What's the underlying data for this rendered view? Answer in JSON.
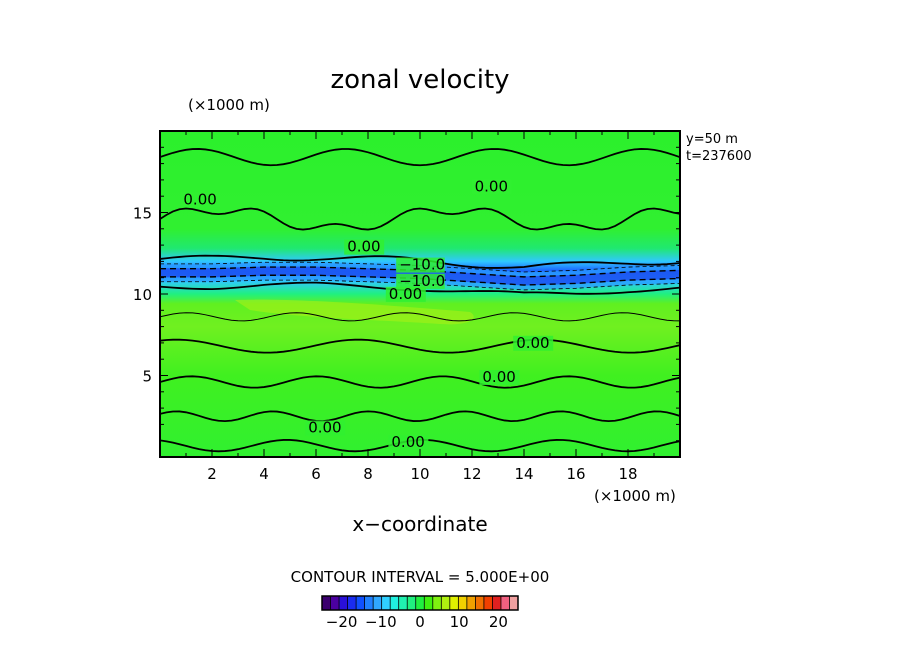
{
  "chart_data": {
    "type": "heatmap",
    "title": "zonal velocity",
    "xlabel": "x−coordinate",
    "ylabel": "",
    "x_unit": "(×1000 m)",
    "y_unit": "(×1000 m)",
    "xlim": [
      0,
      20
    ],
    "ylim": [
      0,
      20
    ],
    "x_ticks": [
      2,
      4,
      6,
      8,
      10,
      12,
      14,
      16,
      18
    ],
    "y_ticks": [
      5,
      10,
      15
    ],
    "info": [
      "y=50 m",
      "t=237600"
    ],
    "contour_interval_text": "CONTOUR INTERVAL = 5.000E+00",
    "colorbar": {
      "range": [
        -25,
        25
      ],
      "ticks": [
        -20,
        -10,
        0,
        10,
        20
      ],
      "colors": [
        "#3b006e",
        "#4b00a0",
        "#2a10d8",
        "#1a2cf0",
        "#1050ff",
        "#2080ff",
        "#30a8ff",
        "#30d0ff",
        "#20f0e0",
        "#20f0b0",
        "#20f080",
        "#20f040",
        "#40f010",
        "#80f010",
        "#b0f010",
        "#e0f000",
        "#f0d000",
        "#f0a000",
        "#f07000",
        "#f04000",
        "#e02020",
        "#f06080",
        "#f0a0a0"
      ]
    },
    "contour_labels": [
      {
        "text": "0.00",
        "x": 0.9,
        "y": 15.5
      },
      {
        "text": "0.00",
        "x": 12.1,
        "y": 16.3
      },
      {
        "text": "0.00",
        "x": 7.2,
        "y": 12.6
      },
      {
        "text": "−10.0",
        "x": 9.2,
        "y": 11.5
      },
      {
        "text": "−10.0",
        "x": 9.2,
        "y": 10.5
      },
      {
        "text": "0.00",
        "x": 8.8,
        "y": 9.7
      },
      {
        "text": "0.00",
        "x": 13.7,
        "y": 6.7
      },
      {
        "text": "0.00",
        "x": 12.4,
        "y": 4.6
      },
      {
        "text": "0.00",
        "x": 5.7,
        "y": 1.5
      },
      {
        "text": "0.00",
        "x": 8.9,
        "y": 0.6
      }
    ],
    "jet": {
      "x": [
        0,
        2,
        4,
        6,
        8,
        10,
        12,
        14,
        16,
        18,
        20
      ],
      "y": [
        11.3,
        11.3,
        11.4,
        11.4,
        11.3,
        11.2,
        11.0,
        10.8,
        10.9,
        11.1,
        11.2
      ]
    }
  }
}
